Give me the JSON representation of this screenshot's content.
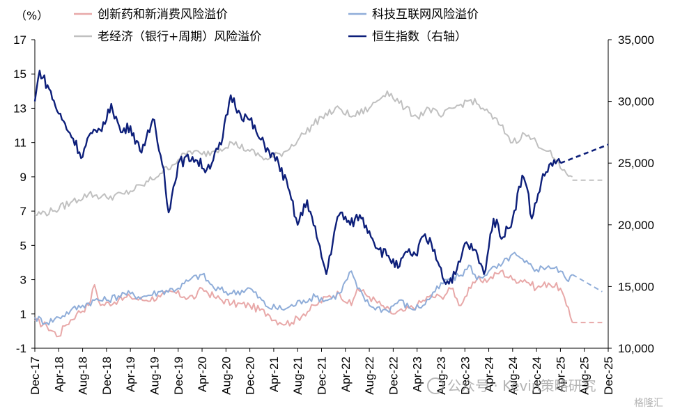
{
  "chart_data": {
    "type": "line",
    "y_unit_label": "（%）",
    "left_axis": {
      "min": -1,
      "max": 17,
      "ticks": [
        -1,
        1,
        3,
        5,
        7,
        9,
        11,
        13,
        15,
        17
      ]
    },
    "right_axis": {
      "min": 10000,
      "max": 35000,
      "ticks": [
        10000,
        15000,
        20000,
        25000,
        30000,
        35000
      ],
      "tick_labels": [
        "10,000",
        "15,000",
        "20,000",
        "25,000",
        "30,000",
        "35,000"
      ]
    },
    "x_axis": {
      "start": "Dec-17",
      "end": "Dec-25",
      "tick_labels": [
        "Dec-17",
        "Apr-18",
        "Aug-18",
        "Dec-18",
        "Apr-19",
        "Aug-19",
        "Dec-19",
        "Apr-20",
        "Aug-20",
        "Dec-20",
        "Apr-21",
        "Aug-21",
        "Dec-21",
        "Apr-22",
        "Aug-22",
        "Dec-22",
        "Apr-23",
        "Aug-23",
        "Dec-23",
        "Apr-24",
        "Aug-24",
        "Dec-24",
        "Apr-25",
        "Aug-25",
        "Dec-25"
      ]
    },
    "legend_placement": "top",
    "grid": false,
    "series": [
      {
        "name": "创新药和新消费风险溢价",
        "color": "#e8a8a8",
        "axis": "left",
        "values": [
          [
            0,
            0.6
          ],
          [
            2,
            0.3
          ],
          [
            4,
            -0.3
          ],
          [
            5,
            0.3
          ],
          [
            7,
            1.0
          ],
          [
            9,
            1.5
          ],
          [
            10,
            2.7
          ],
          [
            11,
            1.5
          ],
          [
            14,
            1.8
          ],
          [
            16,
            2.0
          ],
          [
            18,
            1.8
          ],
          [
            21,
            2.0
          ],
          [
            23,
            2.3
          ],
          [
            25,
            2.0
          ],
          [
            27,
            2.0
          ],
          [
            28,
            2.5
          ],
          [
            30,
            2.0
          ],
          [
            33,
            1.6
          ],
          [
            36,
            1.5
          ],
          [
            39,
            1.0
          ],
          [
            41,
            0.5
          ],
          [
            43,
            0.5
          ],
          [
            45,
            1.0
          ],
          [
            47,
            1.5
          ],
          [
            49,
            2.0
          ],
          [
            51,
            2.2
          ],
          [
            53,
            1.5
          ],
          [
            54,
            2.5
          ],
          [
            56,
            2.0
          ],
          [
            58,
            1.5
          ],
          [
            60,
            1.0
          ],
          [
            62,
            1.2
          ],
          [
            64,
            1.5
          ],
          [
            66,
            2.0
          ],
          [
            68,
            2.0
          ],
          [
            70,
            2.5
          ],
          [
            71,
            1.5
          ],
          [
            73,
            2.5
          ],
          [
            74,
            3.0
          ],
          [
            76,
            3.0
          ],
          [
            78,
            3.5
          ],
          [
            80,
            3.0
          ],
          [
            82,
            3.0
          ],
          [
            84,
            2.5
          ],
          [
            86,
            2.8
          ],
          [
            88,
            2.5
          ],
          [
            89,
            1.5
          ],
          [
            90,
            0.5
          ]
        ],
        "projection": [
          [
            90,
            0.5
          ],
          [
            95,
            0.5
          ]
        ]
      },
      {
        "name": "科技互联网风险溢价",
        "color": "#8fadd9",
        "axis": "left",
        "values": [
          [
            0,
            0.8
          ],
          [
            2,
            0.5
          ],
          [
            4,
            0.8
          ],
          [
            6,
            1.2
          ],
          [
            8,
            1.5
          ],
          [
            10,
            1.8
          ],
          [
            12,
            1.8
          ],
          [
            15,
            2.2
          ],
          [
            18,
            2.0
          ],
          [
            21,
            2.3
          ],
          [
            24,
            2.5
          ],
          [
            26,
            3.0
          ],
          [
            28,
            3.3
          ],
          [
            30,
            2.5
          ],
          [
            33,
            2.2
          ],
          [
            36,
            2.5
          ],
          [
            39,
            1.4
          ],
          [
            42,
            1.3
          ],
          [
            45,
            1.8
          ],
          [
            47,
            2.0
          ],
          [
            49,
            1.8
          ],
          [
            51,
            2.2
          ],
          [
            53,
            3.5
          ],
          [
            54,
            2.5
          ],
          [
            56,
            1.5
          ],
          [
            59,
            1.2
          ],
          [
            61,
            1.8
          ],
          [
            63,
            1.3
          ],
          [
            65,
            1.5
          ],
          [
            67,
            2.3
          ],
          [
            69,
            3.0
          ],
          [
            71,
            3.2
          ],
          [
            73,
            3.8
          ],
          [
            74,
            3.0
          ],
          [
            76,
            3.5
          ],
          [
            78,
            3.8
          ],
          [
            80,
            4.5
          ],
          [
            82,
            4.0
          ],
          [
            84,
            3.6
          ],
          [
            86,
            3.8
          ],
          [
            88,
            3.5
          ],
          [
            89,
            3.0
          ],
          [
            90,
            3.3
          ]
        ],
        "projection": [
          [
            90,
            3.3
          ],
          [
            95,
            2.3
          ]
        ]
      },
      {
        "name": "老经济（银行+周期）风险溢价",
        "color": "#c0c0c0",
        "axis": "left",
        "values": [
          [
            0,
            6.8
          ],
          [
            3,
            7.0
          ],
          [
            6,
            7.5
          ],
          [
            9,
            8.0
          ],
          [
            12,
            7.8
          ],
          [
            15,
            8.0
          ],
          [
            18,
            8.5
          ],
          [
            21,
            9.2
          ],
          [
            24,
            10.0
          ],
          [
            26,
            10.5
          ],
          [
            28,
            10.3
          ],
          [
            30,
            10.5
          ],
          [
            33,
            11.0
          ],
          [
            36,
            10.5
          ],
          [
            39,
            10.0
          ],
          [
            42,
            10.5
          ],
          [
            45,
            11.5
          ],
          [
            48,
            12.5
          ],
          [
            51,
            13.0
          ],
          [
            53,
            12.5
          ],
          [
            56,
            13.0
          ],
          [
            59,
            14.0
          ],
          [
            62,
            13.0
          ],
          [
            64,
            12.5
          ],
          [
            66,
            13.0
          ],
          [
            68,
            12.5
          ],
          [
            70,
            13.0
          ],
          [
            73,
            13.5
          ],
          [
            75,
            13.0
          ],
          [
            78,
            12.0
          ],
          [
            80,
            11.0
          ],
          [
            82,
            11.5
          ],
          [
            84,
            11.0
          ],
          [
            86,
            10.5
          ],
          [
            88,
            9.5
          ],
          [
            90,
            9.0
          ]
        ],
        "projection": [
          [
            90,
            8.8
          ],
          [
            95,
            8.8
          ]
        ]
      },
      {
        "name": "恒生指数（右轴）",
        "color": "#0d1f7a",
        "axis": "right",
        "values": [
          [
            0,
            30000
          ],
          [
            1,
            32500
          ],
          [
            3,
            31000
          ],
          [
            5,
            29000
          ],
          [
            8,
            27000
          ],
          [
            10,
            25500
          ],
          [
            11,
            27000
          ],
          [
            13,
            27500
          ],
          [
            15,
            28500
          ],
          [
            16,
            29800
          ],
          [
            18,
            27500
          ],
          [
            20,
            28000
          ],
          [
            22,
            26000
          ],
          [
            24,
            27500
          ],
          [
            25,
            28500
          ],
          [
            26,
            26000
          ],
          [
            27,
            24500
          ],
          [
            28,
            21000
          ],
          [
            30,
            25000
          ],
          [
            33,
            25500
          ],
          [
            36,
            24500
          ],
          [
            39,
            26500
          ],
          [
            41,
            30500
          ],
          [
            43,
            29000
          ],
          [
            45,
            28500
          ],
          [
            47,
            27000
          ],
          [
            49,
            26000
          ],
          [
            51,
            25000
          ],
          [
            53,
            23000
          ],
          [
            55,
            20000
          ],
          [
            57,
            22000
          ],
          [
            59,
            19000
          ],
          [
            61,
            16000
          ],
          [
            63,
            20000
          ],
          [
            64,
            21000
          ],
          [
            66,
            20000
          ],
          [
            68,
            20800
          ],
          [
            70,
            19500
          ],
          [
            72,
            18000
          ],
          [
            74,
            17500
          ],
          [
            76,
            16500
          ],
          [
            78,
            17800
          ],
          [
            80,
            17500
          ],
          [
            81,
            19000
          ],
          [
            83,
            18500
          ],
          [
            85,
            16500
          ],
          [
            86,
            15200
          ],
          [
            88,
            16000
          ],
          [
            89,
            17000
          ],
          [
            90,
            18500
          ],
          [
            92,
            18000
          ],
          [
            94,
            16000
          ],
          [
            96,
            20500
          ],
          [
            98,
            19000
          ],
          [
            100,
            20500
          ],
          [
            102,
            24000
          ],
          [
            103,
            23000
          ],
          [
            104,
            20500
          ],
          [
            106,
            23500
          ],
          [
            108,
            25000
          ],
          [
            110,
            25000
          ]
        ],
        "projection": [
          [
            110,
            25000
          ],
          [
            120,
            26500
          ]
        ]
      }
    ],
    "watermarks": [
      "公众号 · Kevin策略研究",
      "格隆汇"
    ]
  }
}
